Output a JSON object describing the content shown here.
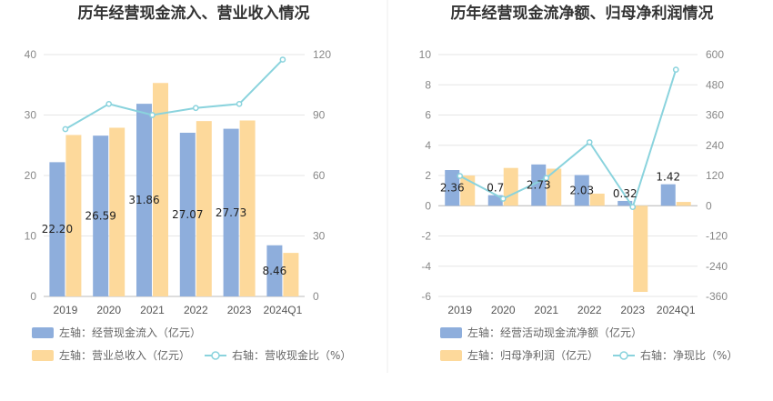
{
  "chart_data": [
    {
      "type": "bar",
      "title": "历年经营现金流入、营业收入情况",
      "categories": [
        "2019",
        "2020",
        "2021",
        "2022",
        "2023",
        "2024Q1"
      ],
      "series": [
        {
          "name": "左轴：经营现金流入（亿元）",
          "axis": "left",
          "kind": "bar",
          "color": "#8eaedc",
          "values": [
            22.2,
            26.59,
            31.86,
            27.07,
            27.73,
            8.46
          ],
          "labels": [
            "22.20",
            "26.59",
            "31.86",
            "27.07",
            "27.73",
            "8.46"
          ]
        },
        {
          "name": "左轴：营业总收入（亿元）",
          "axis": "left",
          "kind": "bar",
          "color": "#fdd99b",
          "values": [
            26.7,
            27.9,
            35.3,
            29.0,
            29.1,
            7.2
          ]
        },
        {
          "name": "右轴：营收现金比（%）",
          "axis": "right",
          "kind": "line",
          "color": "#8ad3dd",
          "values": [
            83,
            95.5,
            90,
            93.5,
            95.5,
            117.5
          ]
        }
      ],
      "left_axis": {
        "min": 0,
        "max": 40,
        "ticks": [
          "0",
          "10",
          "20",
          "30",
          "40"
        ]
      },
      "right_axis": {
        "min": 0,
        "max": 120,
        "ticks": [
          "0",
          "30",
          "60",
          "90",
          "120"
        ]
      },
      "grid": true,
      "legend": "bottom-left"
    },
    {
      "type": "bar",
      "title": "历年经营现金流净额、归母净利润情况",
      "categories": [
        "2019",
        "2020",
        "2021",
        "2022",
        "2023",
        "2024Q1"
      ],
      "series": [
        {
          "name": "左轴：经营活动现金流净额（亿元）",
          "axis": "left",
          "kind": "bar",
          "color": "#8eaedc",
          "values": [
            2.36,
            0.7,
            2.73,
            2.03,
            0.32,
            1.42
          ],
          "labels": [
            "2.36",
            "0.7",
            "2.73",
            "2.03",
            "0.32",
            "1.42"
          ]
        },
        {
          "name": "左轴：归母净利润（亿元）",
          "axis": "left",
          "kind": "bar",
          "color": "#fdd99b",
          "values": [
            2.0,
            2.5,
            2.45,
            0.8,
            -5.7,
            0.25
          ]
        },
        {
          "name": "右轴：净现比（%）",
          "axis": "right",
          "kind": "line",
          "color": "#8ad3dd",
          "values": [
            118,
            28,
            110,
            252,
            -5,
            540
          ]
        }
      ],
      "left_axis": {
        "min": -6,
        "max": 10,
        "ticks": [
          "-6",
          "-4",
          "-2",
          "0",
          "2",
          "4",
          "6",
          "8",
          "10"
        ]
      },
      "right_axis": {
        "min": -360,
        "max": 600,
        "ticks": [
          "-360",
          "-240",
          "-120",
          "0",
          "120",
          "240",
          "360",
          "480",
          "600"
        ]
      },
      "grid": true,
      "legend": "bottom-left"
    }
  ]
}
